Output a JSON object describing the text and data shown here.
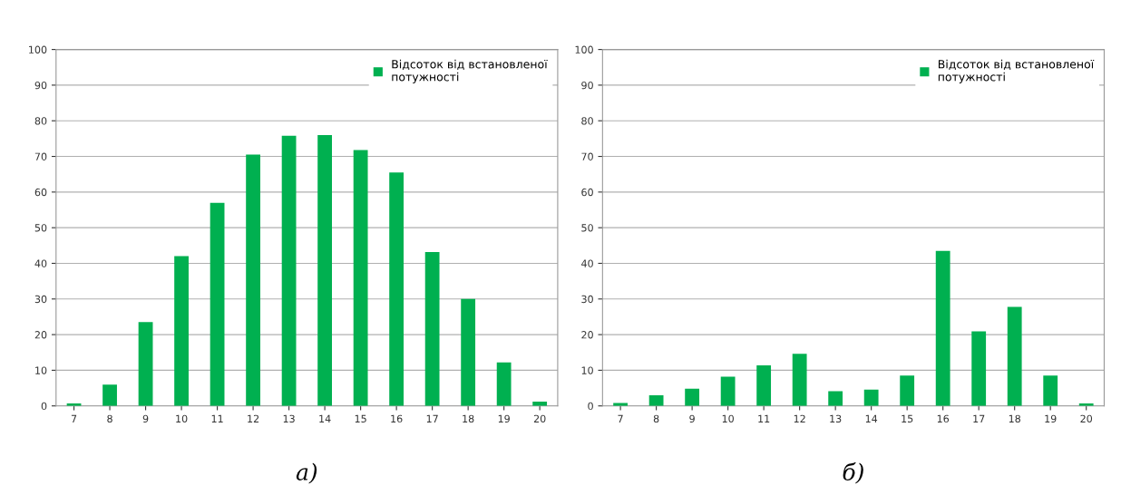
{
  "chart_data": [
    {
      "type": "bar",
      "categories": [
        "7",
        "8",
        "9",
        "10",
        "11",
        "12",
        "13",
        "14",
        "15",
        "16",
        "17",
        "18",
        "19",
        "20"
      ],
      "series": [
        {
          "name": "Відсоток від встановленої потужності",
          "color": "#00b050",
          "values": [
            0.7,
            6,
            23.5,
            42,
            57,
            70.5,
            75.8,
            76,
            71.8,
            65.5,
            43.2,
            30,
            12.2,
            1.2
          ]
        }
      ],
      "ylim": [
        0,
        100
      ],
      "yticks": [
        0,
        10,
        20,
        30,
        40,
        50,
        60,
        70,
        80,
        90,
        100
      ],
      "grid": "y",
      "legend": "top right",
      "annotations": [
        "а)"
      ]
    },
    {
      "type": "bar",
      "categories": [
        "7",
        "8",
        "9",
        "10",
        "11",
        "12",
        "13",
        "14",
        "15",
        "16",
        "17",
        "18",
        "19",
        "20"
      ],
      "series": [
        {
          "name": "Відсоток від встановленої потужності",
          "color": "#00b050",
          "values": [
            0.8,
            3,
            4.8,
            8.2,
            11.4,
            14.6,
            4.1,
            4.6,
            8.5,
            43.5,
            20.9,
            27.8,
            8.5,
            0.7
          ]
        }
      ],
      "ylim": [
        0,
        100
      ],
      "yticks": [
        0,
        10,
        20,
        30,
        40,
        50,
        60,
        70,
        80,
        90,
        100
      ],
      "grid": "y",
      "legend": "top right",
      "annotations": [
        "б)"
      ]
    }
  ]
}
